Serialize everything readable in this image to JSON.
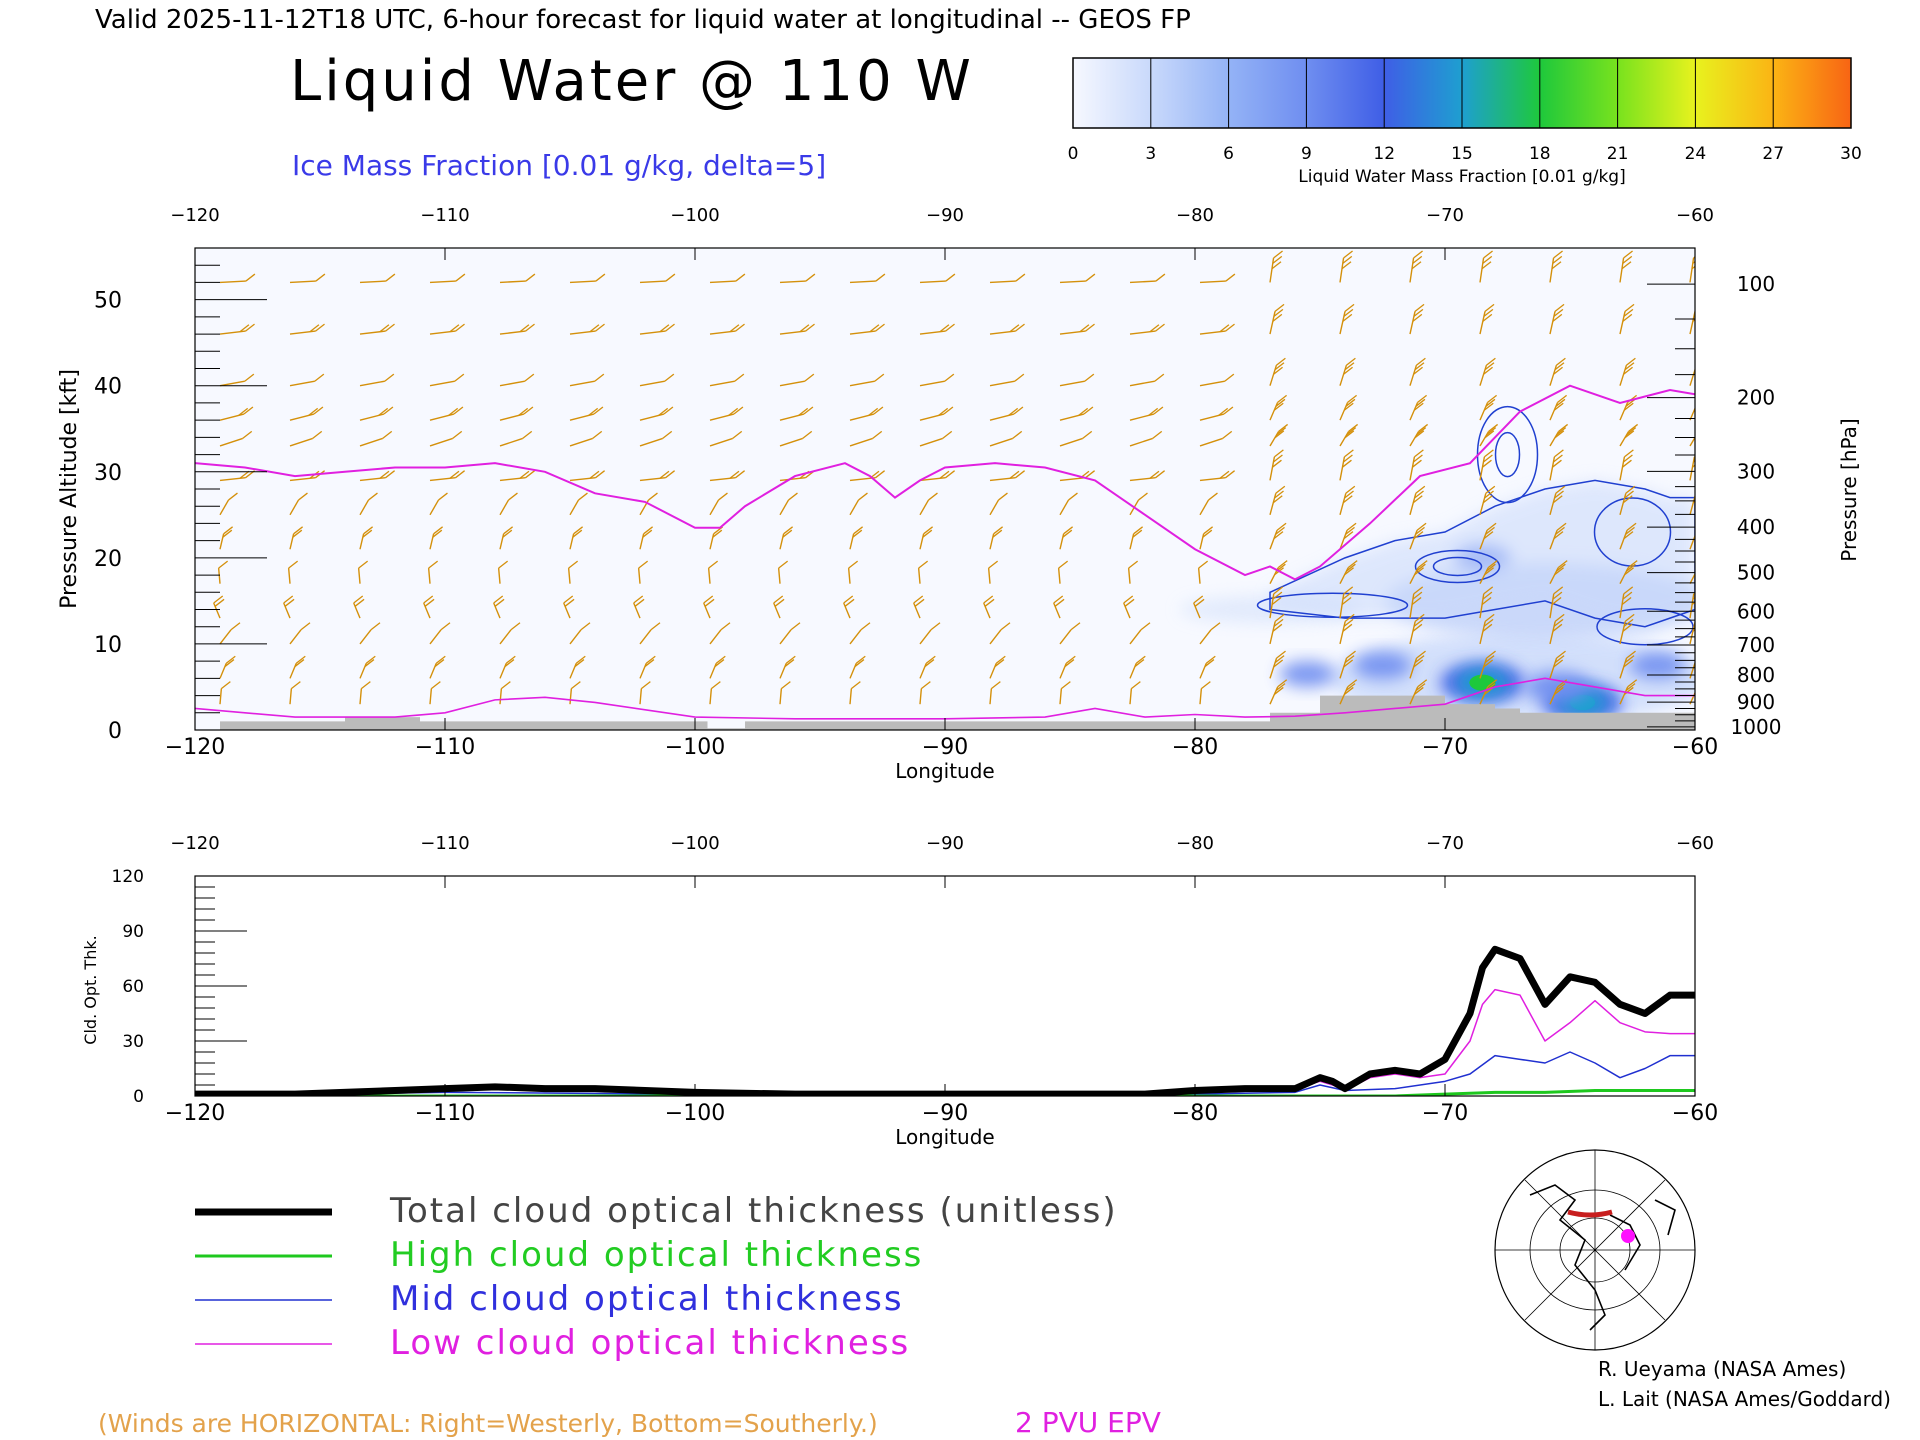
{
  "header": {
    "valid_line": "Valid 2025-11-12T18 UTC, 6-hour forecast for liquid water at longitudinal -- GEOS FP",
    "title": "Liquid Water @ 110 W",
    "subtitle": "Ice Mass Fraction [0.01 g/kg, delta=5]"
  },
  "colorbar": {
    "label": "Liquid Water Mass Fraction [0.01 g/kg]",
    "ticks": [
      "0",
      "3",
      "6",
      "9",
      "12",
      "15",
      "18",
      "21",
      "24",
      "27",
      "30"
    ],
    "colors": [
      "#f6f8ff",
      "#c9d9fb",
      "#94b3f6",
      "#6f8ef0",
      "#3f5ee6",
      "#1e9fd0",
      "#1ec83c",
      "#78e21e",
      "#e8f21e",
      "#fbb414",
      "#f86414"
    ]
  },
  "upper_chart": {
    "xlabel": "Longitude",
    "ylabel_left": "Pressure Altitude [kft]",
    "ylabel_right": "Pressure [hPa]",
    "x_ticks": [
      "−120",
      "−110",
      "−100",
      "−90",
      "−80",
      "−70",
      "−60"
    ],
    "y_ticks": [
      "0",
      "10",
      "20",
      "30",
      "40",
      "50"
    ],
    "p_ticks": [
      "100",
      "200",
      "300",
      "400",
      "500",
      "600",
      "700",
      "800",
      "900",
      "1000"
    ],
    "colors": {
      "epv": "#e020e0",
      "wind": "#d4900a",
      "ice": "#2040d0",
      "terrain": "#bbbbbb"
    }
  },
  "chart_data": [
    {
      "type": "line",
      "name": "upper",
      "x_range": [
        -120,
        -60
      ],
      "y_range_kft": [
        0,
        56
      ],
      "pressure_levels_hpa": [
        100,
        200,
        300,
        400,
        500,
        600,
        700,
        800,
        900,
        1000
      ],
      "epv_2pvu_tropopause_kft": {
        "lon": [
          -120,
          -118,
          -116,
          -114,
          -112,
          -110,
          -108,
          -106,
          -104,
          -102,
          -100,
          -99,
          -98,
          -96,
          -94,
          -93,
          -92,
          -91,
          -90,
          -88,
          -86,
          -84,
          -82,
          -80,
          -78,
          -77,
          -76,
          -75,
          -73,
          -71,
          -69,
          -67,
          -65,
          -63,
          -61,
          -60
        ],
        "kft": [
          31,
          30.5,
          29.5,
          30,
          30.5,
          30.5,
          31,
          30,
          27.5,
          26.5,
          23.5,
          23.5,
          26,
          29.5,
          31,
          29.5,
          27,
          29,
          30.5,
          31,
          30.5,
          29,
          25,
          21,
          18,
          19,
          17.5,
          19,
          24,
          29.5,
          31,
          37,
          40,
          38,
          39.5,
          39
        ]
      },
      "ice_contour_regions": [
        {
          "lon": [
            -77,
            -74,
            -72,
            -70,
            -68,
            -66,
            -64,
            -62,
            -61,
            -60
          ],
          "lower_kft": [
            14,
            13,
            13,
            13,
            14,
            15,
            13,
            12,
            13,
            14
          ],
          "upper_kft": [
            16,
            20,
            22,
            23,
            26,
            28,
            29,
            28,
            27,
            27
          ]
        }
      ],
      "liquid_water_blobs": [
        {
          "lon": -68.5,
          "kft": 5.5,
          "value": 17
        },
        {
          "lon": -64.5,
          "kft": 3.2,
          "value": 15
        },
        {
          "lon": -65.5,
          "kft": 5.0,
          "value": 9
        },
        {
          "lon": -72.5,
          "kft": 7.5,
          "value": 6
        },
        {
          "lon": -75.5,
          "kft": 6.5,
          "value": 5
        },
        {
          "lon": -61.5,
          "kft": 7.5,
          "value": 5
        },
        {
          "lon": -68.5,
          "kft": 20.0,
          "value": 5
        }
      ],
      "terrain_kft": {
        "lon": [
          -120,
          -119,
          -118,
          -116,
          -114,
          -112,
          -111,
          -110,
          -108,
          -106,
          -104,
          -102,
          -100,
          -99.5,
          -99,
          -98,
          -96,
          -94,
          -92,
          -90,
          -88,
          -86,
          -84,
          -82,
          -80,
          -78,
          -77,
          -76,
          -75,
          -73,
          -71,
          -70,
          -69,
          -68,
          -67,
          -66,
          -65,
          -64,
          -63,
          -62,
          -61,
          -60
        ],
        "kft": [
          0,
          1,
          1,
          1,
          1.5,
          1.5,
          1,
          1,
          1,
          1,
          1,
          1,
          1,
          0.2,
          0.2,
          1,
          1,
          1,
          1,
          1,
          1,
          1,
          1,
          1,
          1,
          1,
          2,
          2,
          4,
          4,
          4,
          3,
          3,
          2.5,
          2,
          2,
          2,
          2,
          2,
          2,
          2,
          2
        ]
      }
    },
    {
      "type": "line",
      "name": "cloud_optical_thickness",
      "title": "",
      "xlabel": "Longitude",
      "ylabel": "Cld. Opt. Thk.",
      "x_range": [
        -120,
        -60
      ],
      "y_range": [
        0,
        120
      ],
      "x_ticks": [
        "−120",
        "−110",
        "−100",
        "−90",
        "−80",
        "−70",
        "−60"
      ],
      "y_ticks": [
        "0",
        "30",
        "60",
        "90",
        "120"
      ],
      "series": [
        {
          "name": "Total cloud optical thickness (unitless)",
          "color": "#000000",
          "width": 7,
          "x": [
            -120,
            -116,
            -112,
            -110,
            -108,
            -106,
            -104,
            -102,
            -100,
            -96,
            -90,
            -86,
            -82,
            -80,
            -78,
            -76,
            -75,
            -74.5,
            -74,
            -73,
            -72,
            -71,
            -70,
            -69,
            -68.5,
            -68,
            -67,
            -66,
            -65,
            -64,
            -63,
            -62,
            -61,
            -60
          ],
          "y": [
            1,
            1,
            3,
            4,
            5,
            4,
            4,
            3,
            2,
            1,
            1,
            1,
            1,
            3,
            4,
            4,
            10,
            8,
            4,
            12,
            14,
            12,
            20,
            45,
            70,
            80,
            75,
            50,
            65,
            62,
            50,
            45,
            55,
            55
          ]
        },
        {
          "name": "High cloud optical thickness",
          "color": "#1ec81e",
          "width": 3,
          "x": [
            -120,
            -100,
            -80,
            -72,
            -70,
            -68,
            -66,
            -64,
            -62,
            -60
          ],
          "y": [
            0,
            0,
            0,
            0,
            1,
            2,
            2,
            3,
            3,
            3
          ]
        },
        {
          "name": "Mid cloud optical thickness",
          "color": "#2030d0",
          "width": 1.5,
          "x": [
            -120,
            -110,
            -100,
            -90,
            -80,
            -76,
            -75,
            -74,
            -72,
            -70,
            -69,
            -68,
            -67,
            -66,
            -65,
            -64,
            -63,
            -62,
            -61,
            -60
          ],
          "y": [
            0,
            2,
            1,
            0,
            1,
            2,
            6,
            3,
            4,
            8,
            12,
            22,
            20,
            18,
            24,
            18,
            10,
            15,
            22,
            22
          ]
        },
        {
          "name": "Low cloud optical thickness",
          "color": "#e020e0",
          "width": 1.5,
          "x": [
            -120,
            -116,
            -112,
            -110,
            -108,
            -106,
            -104,
            -100,
            -96,
            -90,
            -82,
            -80,
            -78,
            -76,
            -75,
            -74.5,
            -74,
            -73,
            -72,
            -71,
            -70,
            -69,
            -68.5,
            -68,
            -67,
            -66,
            -65,
            -64,
            -63,
            -62,
            -61,
            -60
          ],
          "y": [
            1,
            1,
            2,
            3,
            4,
            3,
            3,
            2,
            1,
            1,
            1,
            2,
            3,
            4,
            8,
            6,
            3,
            10,
            12,
            10,
            12,
            30,
            50,
            58,
            55,
            30,
            40,
            52,
            40,
            35,
            34,
            34
          ]
        }
      ]
    }
  ],
  "legend": {
    "items": [
      {
        "label": "Total cloud optical thickness (unitless)",
        "color": "#444444",
        "line": "#000000",
        "width": 7
      },
      {
        "label": "High cloud optical thickness",
        "color": "#22cc22",
        "line": "#1ec81e",
        "width": 3
      },
      {
        "label": "Mid cloud optical thickness",
        "color": "#3030dd",
        "line": "#2030d0",
        "width": 1.5
      },
      {
        "label": "Low cloud optical thickness",
        "color": "#e020e0",
        "line": "#e020e0",
        "width": 1.5
      }
    ]
  },
  "footer": {
    "credit1": "R. Ueyama (NASA Ames)",
    "credit2": "L. Lait (NASA Ames/Goddard)",
    "winds_note": "(Winds are HORIZONTAL: Right=Westerly, Bottom=Southerly.)",
    "epv_label": "2 PVU EPV"
  }
}
